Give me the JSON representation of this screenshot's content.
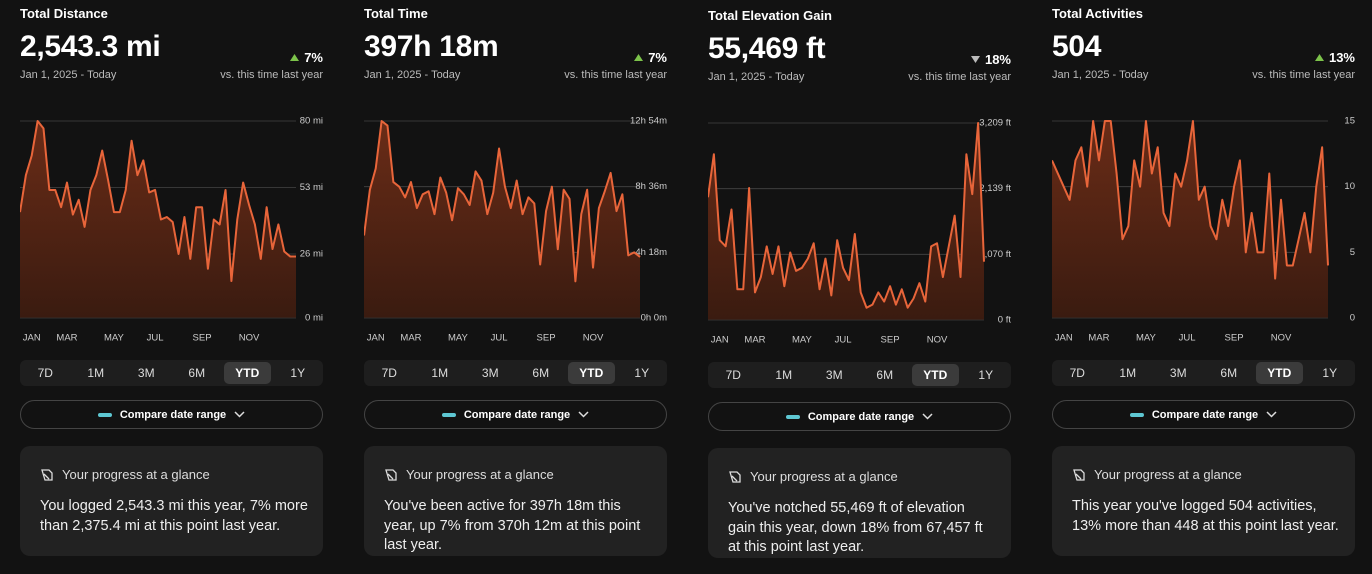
{
  "chart_data": [
    {
      "type": "area",
      "title": "Total Distance",
      "headline": "2,543.3 mi",
      "change": "7%",
      "change_direction": "up",
      "period": "Jan 1, 2025 - Today",
      "comparison": "vs. this time last year",
      "categories": [
        null,
        null,
        "JAN",
        null,
        null,
        null,
        null,
        null,
        "MAR",
        null,
        null,
        null,
        null,
        null,
        null,
        null,
        "MAY",
        null,
        null,
        null,
        null,
        null,
        null,
        "JUL",
        null,
        null,
        null,
        null,
        null,
        null,
        null,
        "SEP",
        null,
        null,
        null,
        null,
        null,
        null,
        null,
        "NOV",
        null,
        null,
        null,
        null,
        null,
        null,
        null,
        null
      ],
      "values": [
        43,
        58,
        66,
        80,
        77,
        52,
        52,
        45,
        55,
        42,
        48,
        37,
        52,
        58,
        68,
        56,
        43,
        43,
        52,
        72,
        58,
        64,
        51,
        52,
        40,
        41,
        39,
        26,
        41,
        24,
        45,
        45,
        20,
        40,
        38,
        52,
        15,
        40,
        55,
        46,
        38,
        24,
        45,
        28,
        38,
        27,
        25,
        25
      ],
      "ylim": [
        0,
        80
      ],
      "yticks": [
        {
          "value": 0,
          "label": "0 mi"
        },
        {
          "value": 26,
          "label": "26 mi"
        },
        {
          "value": 53,
          "label": "53 mi"
        },
        {
          "value": 80,
          "label": "80 mi"
        }
      ],
      "color": "#e8653a",
      "ranges": [
        "7D",
        "1M",
        "3M",
        "6M",
        "YTD",
        "1Y"
      ],
      "selected_range_index": 4,
      "compare_label": "Compare date range",
      "summary_title": "Your progress at a glance",
      "summary_text": "You logged 2,543.3 mi this year, 7% more than 2,375.4 mi at this point last year."
    },
    {
      "type": "area",
      "title": "Total Time",
      "headline": "397h 18m",
      "change": "7%",
      "change_direction": "up",
      "period": "Jan 1, 2025 - Today",
      "comparison": "vs. this time last year",
      "categories": [
        null,
        null,
        "JAN",
        null,
        null,
        null,
        null,
        null,
        "MAR",
        null,
        null,
        null,
        null,
        null,
        null,
        null,
        "MAY",
        null,
        null,
        null,
        null,
        null,
        null,
        "JUL",
        null,
        null,
        null,
        null,
        null,
        null,
        null,
        "SEP",
        null,
        null,
        null,
        null,
        null,
        null,
        null,
        "NOV",
        null,
        null,
        null,
        null,
        null,
        null,
        null,
        null
      ],
      "values": [
        5.4,
        8.4,
        9.8,
        12.9,
        12.6,
        8.9,
        8.6,
        7.9,
        8.9,
        7.2,
        8.1,
        8.3,
        6.8,
        9.2,
        8.2,
        6.4,
        8.5,
        8.1,
        7.4,
        9.6,
        9.0,
        6.8,
        8.2,
        11.1,
        8.6,
        7.2,
        9.0,
        6.8,
        7.9,
        7.5,
        3.5,
        7.0,
        8.6,
        4.5,
        8.4,
        7.8,
        2.4,
        6.8,
        8.4,
        3.3,
        7.2,
        8.3,
        9.5,
        7.0,
        8.1,
        4.1,
        4.3,
        4.0
      ],
      "ylim": [
        0,
        12.9
      ],
      "yticks": [
        {
          "value": 0,
          "label": "0h 0m"
        },
        {
          "value": 4.3,
          "label": "4h 18m"
        },
        {
          "value": 8.6,
          "label": "8h 36m"
        },
        {
          "value": 12.9,
          "label": "12h 54m"
        }
      ],
      "color": "#e8653a",
      "ranges": [
        "7D",
        "1M",
        "3M",
        "6M",
        "YTD",
        "1Y"
      ],
      "selected_range_index": 4,
      "compare_label": "Compare date range",
      "summary_title": "Your progress at a glance",
      "summary_text": "You've been active for 397h 18m this year, up 7% from 370h 12m at this point last year."
    },
    {
      "type": "area",
      "title": "Total Elevation Gain",
      "headline": "55,469 ft",
      "change": "18%",
      "change_direction": "down",
      "period": "Jan 1, 2025 - Today",
      "comparison": "vs. this time last year",
      "categories": [
        null,
        null,
        "JAN",
        null,
        null,
        null,
        null,
        null,
        "MAR",
        null,
        null,
        null,
        null,
        null,
        null,
        null,
        "MAY",
        null,
        null,
        null,
        null,
        null,
        null,
        "JUL",
        null,
        null,
        null,
        null,
        null,
        null,
        null,
        "SEP",
        null,
        null,
        null,
        null,
        null,
        null,
        null,
        "NOV",
        null,
        null,
        null,
        null,
        null,
        null,
        null,
        null
      ],
      "values": [
        2000,
        2700,
        1300,
        1200,
        1800,
        500,
        500,
        2150,
        450,
        700,
        1200,
        750,
        1200,
        550,
        1100,
        800,
        850,
        1000,
        1250,
        500,
        1000,
        400,
        1300,
        850,
        650,
        1400,
        450,
        200,
        250,
        450,
        300,
        550,
        250,
        500,
        200,
        350,
        600,
        300,
        1200,
        1250,
        700,
        1200,
        1700,
        700,
        2700,
        2050,
        3209,
        950
      ],
      "ylim": [
        0,
        3209
      ],
      "yticks": [
        {
          "value": 0,
          "label": "0 ft"
        },
        {
          "value": 1070,
          "label": "1,070 ft"
        },
        {
          "value": 2139,
          "label": "2,139 ft"
        },
        {
          "value": 3209,
          "label": "3,209 ft"
        }
      ],
      "color": "#e8653a",
      "ranges": [
        "7D",
        "1M",
        "3M",
        "6M",
        "YTD",
        "1Y"
      ],
      "selected_range_index": 4,
      "compare_label": "Compare date range",
      "summary_title": "Your progress at a glance",
      "summary_text": "You've notched 55,469 ft of elevation gain this year, down 18% from 67,457 ft at this point last year."
    },
    {
      "type": "area",
      "title": "Total Activities",
      "headline": "504",
      "change": "13%",
      "change_direction": "up",
      "period": "Jan 1, 2025 - Today",
      "comparison": "vs. this time last year",
      "categories": [
        null,
        null,
        "JAN",
        null,
        null,
        null,
        null,
        null,
        "MAR",
        null,
        null,
        null,
        null,
        null,
        null,
        null,
        "MAY",
        null,
        null,
        null,
        null,
        null,
        null,
        "JUL",
        null,
        null,
        null,
        null,
        null,
        null,
        null,
        "SEP",
        null,
        null,
        null,
        null,
        null,
        null,
        null,
        "NOV",
        null,
        null,
        null,
        null,
        null,
        null,
        null,
        null
      ],
      "values": [
        12,
        11,
        10,
        9,
        12,
        13,
        10,
        15,
        12,
        15,
        15,
        11,
        6,
        7,
        12,
        10,
        15,
        11,
        13,
        8,
        7,
        11,
        10,
        12,
        15,
        9,
        10,
        7,
        6,
        9,
        7,
        10,
        12,
        5,
        8,
        5,
        5,
        11,
        3,
        9,
        4,
        4,
        6,
        8,
        5,
        10,
        13,
        4
      ],
      "ylim": [
        0,
        15
      ],
      "yticks": [
        0,
        5,
        10,
        15
      ],
      "color": "#e8653a",
      "ranges": [
        "7D",
        "1M",
        "3M",
        "6M",
        "YTD",
        "1Y"
      ],
      "selected_range_index": 4,
      "compare_label": "Compare date range",
      "summary_title": "Your progress at a glance",
      "summary_text": "This year you've logged 504 activities, 13% more than 448 at this point last year."
    }
  ]
}
